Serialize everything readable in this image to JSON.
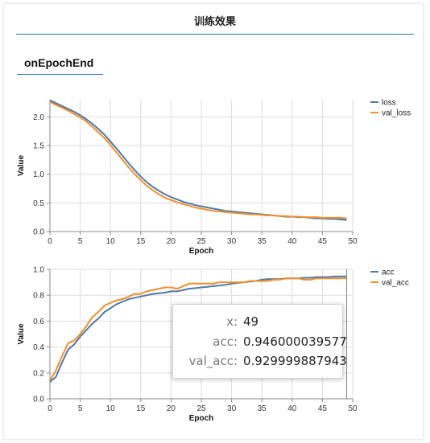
{
  "header": {
    "title": "训练效果"
  },
  "tab": {
    "label": "onEpochEnd"
  },
  "colors": {
    "blue": "#4e79a7",
    "orange": "#f28e2b",
    "grid": "#dddddd",
    "axis": "#888888"
  },
  "chart_data": [
    {
      "type": "line",
      "xlabel": "Epoch",
      "ylabel": "Value",
      "xlim": [
        0,
        50
      ],
      "ylim": [
        0,
        2.3
      ],
      "xticks": [
        0,
        5,
        10,
        15,
        20,
        25,
        30,
        35,
        40,
        45,
        50
      ],
      "yticks": [
        0.0,
        0.5,
        1.0,
        1.5,
        2.0
      ],
      "grid": true,
      "legend": "right",
      "series": [
        {
          "name": "loss",
          "color": "#4e79a7",
          "x": [
            0,
            1,
            2,
            3,
            4,
            5,
            6,
            7,
            8,
            9,
            10,
            11,
            12,
            13,
            14,
            15,
            16,
            17,
            18,
            19,
            20,
            21,
            22,
            23,
            24,
            25,
            26,
            27,
            28,
            29,
            30,
            31,
            32,
            33,
            34,
            35,
            36,
            37,
            38,
            39,
            40,
            41,
            42,
            43,
            44,
            45,
            46,
            47,
            48,
            49
          ],
          "y": [
            2.29,
            2.24,
            2.19,
            2.14,
            2.09,
            2.03,
            1.96,
            1.88,
            1.79,
            1.69,
            1.57,
            1.45,
            1.32,
            1.19,
            1.07,
            0.96,
            0.86,
            0.78,
            0.71,
            0.65,
            0.6,
            0.56,
            0.52,
            0.49,
            0.46,
            0.44,
            0.42,
            0.4,
            0.38,
            0.36,
            0.35,
            0.34,
            0.33,
            0.32,
            0.31,
            0.3,
            0.29,
            0.28,
            0.27,
            0.26,
            0.26,
            0.25,
            0.25,
            0.24,
            0.23,
            0.23,
            0.22,
            0.22,
            0.21,
            0.2
          ]
        },
        {
          "name": "val_loss",
          "color": "#f28e2b",
          "x": [
            0,
            1,
            2,
            3,
            4,
            5,
            6,
            7,
            8,
            9,
            10,
            11,
            12,
            13,
            14,
            15,
            16,
            17,
            18,
            19,
            20,
            21,
            22,
            23,
            24,
            25,
            26,
            27,
            28,
            29,
            30,
            31,
            32,
            33,
            34,
            35,
            36,
            37,
            38,
            39,
            40,
            41,
            42,
            43,
            44,
            45,
            46,
            47,
            48,
            49
          ],
          "y": [
            2.26,
            2.21,
            2.16,
            2.11,
            2.05,
            1.99,
            1.92,
            1.83,
            1.73,
            1.63,
            1.51,
            1.38,
            1.25,
            1.12,
            1.0,
            0.9,
            0.8,
            0.72,
            0.65,
            0.59,
            0.55,
            0.51,
            0.48,
            0.45,
            0.42,
            0.4,
            0.38,
            0.36,
            0.35,
            0.34,
            0.33,
            0.32,
            0.31,
            0.3,
            0.3,
            0.29,
            0.28,
            0.28,
            0.27,
            0.27,
            0.26,
            0.26,
            0.25,
            0.25,
            0.25,
            0.24,
            0.24,
            0.24,
            0.24,
            0.23
          ]
        }
      ]
    },
    {
      "type": "line",
      "xlabel": "Epoch",
      "ylabel": "Value",
      "xlim": [
        0,
        50
      ],
      "ylim": [
        0,
        1.0
      ],
      "xticks": [
        0,
        5,
        10,
        15,
        20,
        25,
        30,
        35,
        40,
        45,
        50
      ],
      "yticks": [
        0.0,
        0.2,
        0.4,
        0.6,
        0.8,
        1.0
      ],
      "grid": true,
      "legend": "right",
      "hover_x": 49,
      "series": [
        {
          "name": "acc",
          "color": "#4e79a7",
          "x": [
            0,
            1,
            2,
            3,
            4,
            5,
            6,
            7,
            8,
            9,
            10,
            11,
            12,
            13,
            14,
            15,
            16,
            17,
            18,
            19,
            20,
            21,
            22,
            23,
            24,
            25,
            26,
            27,
            28,
            29,
            30,
            31,
            32,
            33,
            34,
            35,
            36,
            37,
            38,
            39,
            40,
            41,
            42,
            43,
            44,
            45,
            46,
            47,
            48,
            49
          ],
          "y": [
            0.13,
            0.17,
            0.28,
            0.38,
            0.42,
            0.48,
            0.53,
            0.58,
            0.62,
            0.67,
            0.7,
            0.73,
            0.75,
            0.77,
            0.78,
            0.79,
            0.8,
            0.81,
            0.815,
            0.82,
            0.83,
            0.83,
            0.84,
            0.85,
            0.855,
            0.86,
            0.865,
            0.87,
            0.875,
            0.88,
            0.89,
            0.895,
            0.9,
            0.905,
            0.91,
            0.92,
            0.925,
            0.925,
            0.925,
            0.93,
            0.93,
            0.93,
            0.935,
            0.935,
            0.94,
            0.94,
            0.94,
            0.945,
            0.945,
            0.946000039577
          ]
        },
        {
          "name": "val_acc",
          "color": "#f28e2b",
          "x": [
            0,
            1,
            2,
            3,
            4,
            5,
            6,
            7,
            8,
            9,
            10,
            11,
            12,
            13,
            14,
            15,
            16,
            17,
            18,
            19,
            20,
            21,
            22,
            23,
            24,
            25,
            26,
            27,
            28,
            29,
            30,
            31,
            32,
            33,
            34,
            35,
            36,
            37,
            38,
            39,
            40,
            41,
            42,
            43,
            44,
            45,
            46,
            47,
            48,
            49
          ],
          "y": [
            0.14,
            0.22,
            0.33,
            0.43,
            0.45,
            0.5,
            0.56,
            0.63,
            0.67,
            0.72,
            0.74,
            0.76,
            0.77,
            0.79,
            0.81,
            0.81,
            0.83,
            0.84,
            0.85,
            0.86,
            0.86,
            0.85,
            0.87,
            0.89,
            0.89,
            0.89,
            0.89,
            0.89,
            0.9,
            0.9,
            0.9,
            0.9,
            0.9,
            0.91,
            0.91,
            0.91,
            0.91,
            0.92,
            0.92,
            0.93,
            0.93,
            0.93,
            0.92,
            0.92,
            0.93,
            0.93,
            0.93,
            0.93,
            0.93,
            0.929999887943
          ]
        }
      ]
    }
  ],
  "tooltip": {
    "x_label": "x:",
    "x_value": "49",
    "acc_label": "acc:",
    "acc_value": "0.946000039577",
    "val_acc_label": "val_acc:",
    "val_acc_value": "0.929999887943"
  }
}
